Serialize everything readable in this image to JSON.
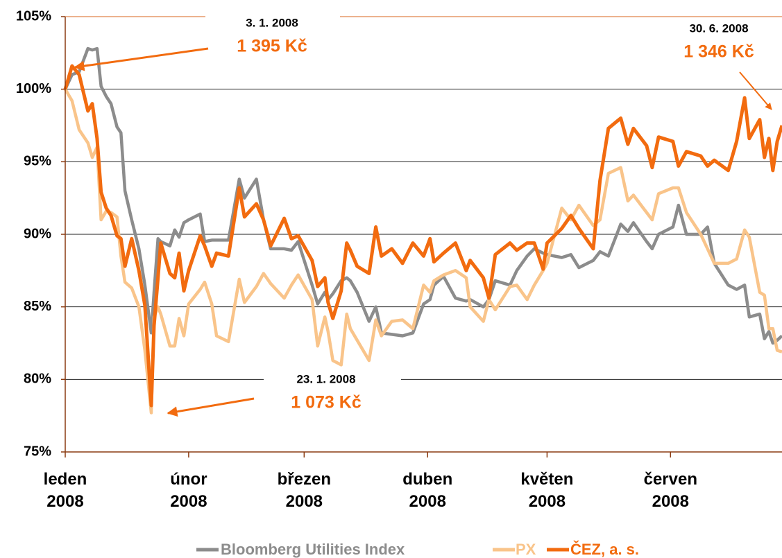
{
  "chart_data": {
    "type": "line",
    "xlim": [
      0,
      180
    ],
    "xticks": [
      {
        "value": 0,
        "label": "leden 2008"
      },
      {
        "value": 31,
        "label": "únor 2008"
      },
      {
        "value": 60,
        "label": "březen 2008"
      },
      {
        "value": 91,
        "label": "duben 2008"
      },
      {
        "value": 121,
        "label": "květen 2008"
      },
      {
        "value": 152,
        "label": "červen 2008"
      }
    ],
    "ylim": [
      75,
      105
    ],
    "yticks": [
      {
        "value": 75,
        "label": "75%"
      },
      {
        "value": 80,
        "label": "80%"
      },
      {
        "value": 85,
        "label": "85%"
      },
      {
        "value": 90,
        "label": "90%"
      },
      {
        "value": 95,
        "label": "95%"
      },
      {
        "value": 100,
        "label": "100%"
      },
      {
        "value": 105,
        "label": "105%"
      }
    ],
    "grid": true,
    "legend": "bottom",
    "x": [
      0,
      1.7,
      3.5,
      5.7,
      6.8,
      8,
      9,
      10.3,
      11.5,
      13,
      14,
      15,
      16.7,
      18.5,
      20,
      21.6,
      22.3,
      23.3,
      24,
      26.3,
      27.5,
      28.6,
      29.8,
      31,
      33.9,
      35,
      36.8,
      38,
      41,
      43.7,
      45,
      48,
      49.8,
      51.6,
      55,
      56.8,
      58.5,
      62,
      63.4,
      65.2,
      66,
      67.2,
      69.3,
      70.7,
      71.6,
      73.3,
      76.3,
      78,
      79.4,
      82,
      84.7,
      87.3,
      90,
      91.6,
      92.6,
      95,
      98,
      100.7,
      101.7,
      105,
      106.4,
      108,
      111.7,
      113.4,
      116,
      117.8,
      120,
      121,
      124.7,
      127,
      129,
      132.6,
      134.3,
      136.4,
      139.5,
      141.3,
      142.7,
      146,
      147.4,
      149,
      152.6,
      154,
      156,
      159.6,
      161.3,
      163,
      166.5,
      168.6,
      170.6,
      171.8,
      174.4,
      175.6,
      176.7,
      177.7,
      178.8,
      180
    ],
    "series": [
      {
        "name": "Bloomberg Utilities Index",
        "color": "#8c8c8c",
        "values": [
          100,
          101.0,
          101.2,
          102.8,
          102.7,
          102.8,
          100.2,
          99.5,
          99.0,
          97.4,
          97.0,
          93.0,
          91.0,
          89.0,
          86.5,
          83.2,
          86.0,
          89.7,
          89.5,
          89.2,
          90.3,
          89.8,
          90.8,
          91.0,
          91.4,
          89.5,
          89.6,
          89.6,
          89.6,
          93.8,
          92.5,
          93.8,
          91.0,
          89.0,
          89.0,
          88.9,
          89.5,
          86.5,
          85.2,
          86.0,
          85.5,
          85.9,
          86.8,
          87.0,
          86.8,
          86.0,
          84.0,
          85.0,
          83.2,
          83.1,
          83.0,
          83.2,
          85.2,
          85.5,
          86.5,
          87.1,
          85.6,
          85.4,
          85.5,
          85.0,
          85.5,
          86.8,
          86.5,
          87.5,
          88.5,
          89.0,
          88.7,
          88.6,
          88.4,
          88.6,
          87.7,
          88.2,
          88.8,
          88.5,
          90.7,
          90.2,
          90.8,
          89.5,
          89.0,
          90.0,
          90.5,
          92.0,
          90.0,
          90.0,
          90.5,
          88.0,
          86.5,
          86.2,
          86.5,
          84.3,
          84.5,
          82.8,
          83.3,
          82.5,
          82.7,
          83.0
        ]
      },
      {
        "name": "PX",
        "color": "#f9c48a",
        "values": [
          100,
          99.2,
          97.2,
          96.3,
          95.3,
          96.0,
          91.0,
          91.6,
          91.5,
          91.2,
          88.5,
          86.7,
          86.3,
          85.0,
          82.0,
          77.7,
          84.3,
          85.0,
          84.5,
          82.3,
          82.3,
          84.2,
          83.0,
          85.2,
          86.2,
          86.7,
          85.2,
          83.0,
          82.6,
          86.9,
          85.3,
          86.4,
          87.3,
          86.6,
          85.6,
          86.5,
          87.2,
          85.5,
          82.3,
          84.3,
          83.3,
          81.3,
          81.0,
          84.5,
          83.5,
          82.7,
          81.3,
          84.1,
          83.0,
          84.0,
          84.1,
          83.5,
          86.5,
          86.0,
          86.8,
          87.2,
          87.5,
          87.0,
          85.0,
          84.0,
          85.5,
          84.8,
          86.4,
          86.5,
          85.5,
          86.5,
          87.5,
          88.0,
          91.8,
          91.0,
          92.0,
          90.6,
          91.0,
          94.2,
          94.6,
          92.3,
          92.7,
          91.5,
          91.0,
          92.8,
          93.2,
          93.2,
          91.5,
          90.0,
          89.0,
          88.0,
          88.0,
          88.3,
          90.3,
          89.8,
          86.0,
          85.8,
          83.5,
          83.5,
          82.0,
          81.9
        ]
      },
      {
        "name": "ČEZ, a. s.",
        "color": "#f26b0f",
        "values": [
          100,
          101.6,
          101.0,
          98.5,
          99.0,
          96.6,
          92.9,
          91.8,
          91.3,
          89.9,
          89.7,
          87.8,
          89.7,
          87.5,
          85.1,
          78.2,
          83.7,
          87.0,
          89.4,
          87.3,
          87.0,
          88.7,
          86.1,
          87.5,
          89.9,
          89.2,
          87.8,
          88.7,
          88.5,
          93.2,
          91.2,
          92.1,
          91.0,
          89.2,
          91.1,
          89.7,
          89.9,
          88.2,
          86.4,
          87.0,
          85.3,
          84.2,
          86.1,
          89.4,
          88.9,
          87.8,
          87.3,
          90.5,
          88.5,
          89.0,
          88.0,
          89.4,
          88.5,
          89.7,
          88.1,
          88.7,
          89.4,
          87.5,
          88.2,
          87.0,
          85.6,
          88.6,
          89.4,
          88.9,
          89.4,
          89.4,
          87.6,
          89.4,
          90.4,
          91.3,
          90.4,
          89.0,
          93.7,
          97.3,
          98.0,
          96.2,
          97.3,
          96.1,
          94.6,
          96.7,
          96.4,
          94.7,
          95.7,
          95.4,
          94.7,
          95.1,
          94.4,
          96.4,
          99.4,
          96.6,
          97.9,
          95.3,
          96.6,
          94.4,
          96.4,
          97.5
        ]
      }
    ],
    "annotations": [
      {
        "date": "3. 1. 2008",
        "price": "1 395 Kč"
      },
      {
        "date": "30. 6. 2008",
        "price": "1 346 Kč"
      },
      {
        "date": "23. 1. 2008",
        "price": "1 073 Kč"
      }
    ]
  }
}
